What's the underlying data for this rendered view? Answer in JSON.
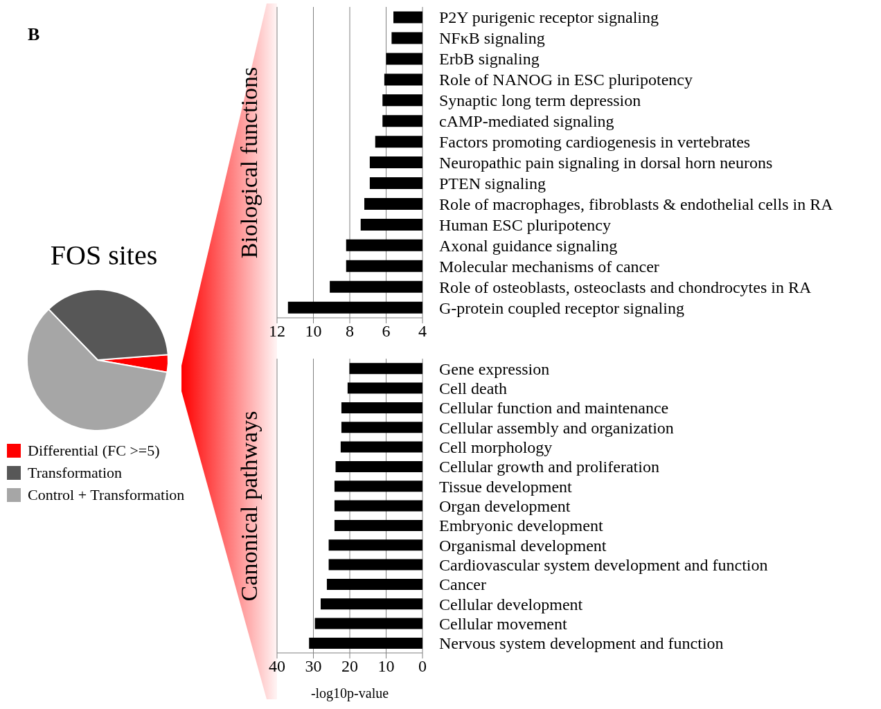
{
  "chart_data": [
    {
      "type": "pie",
      "title": "FOS sites",
      "annotations": [
        "B"
      ],
      "categories": [
        "Differential (FC >=5)",
        "Transformation",
        "Control + Transformation"
      ],
      "values": [
        4,
        36,
        60
      ],
      "colors": [
        "#ff0000",
        "#575757",
        "#a6a6a6"
      ],
      "legend": "bottom left"
    },
    {
      "type": "bar",
      "orientation": "horizontal",
      "ylabel": "Biological functions",
      "categories": [
        "P2Y purigenic receptor signaling",
        "NFκB signaling",
        "ErbB signaling",
        "Role of NANOG in ESC pluripotency",
        "Synaptic long term depression",
        "cAMP-mediated signaling",
        "Factors promoting cardiogenesis in vertebrates",
        "Neuropathic pain signaling in dorsal horn neurons",
        "PTEN signaling",
        "Role of macrophages, fibroblasts & endothelial cells in RA",
        "Human ESC pluripotency",
        "Axonal guidance signaling",
        "Molecular mechanisms of cancer",
        "Role of osteoblasts, osteoclasts and chondrocytes in RA",
        "G-protein coupled receptor signaling"
      ],
      "values": [
        5.6,
        5.7,
        6.0,
        6.1,
        6.2,
        6.2,
        6.6,
        6.9,
        6.9,
        7.2,
        7.4,
        8.2,
        8.2,
        9.1,
        11.4
      ],
      "color": "#000000",
      "xlim": [
        12,
        4
      ],
      "xticks": [
        12,
        10,
        8,
        6,
        4
      ],
      "grid": "x"
    },
    {
      "type": "bar",
      "orientation": "horizontal",
      "ylabel": "Canonical pathways",
      "xlabel": "-log10p-value",
      "categories": [
        "Gene expression",
        "Cell death",
        "Cellular function and maintenance",
        "Cellular assembly and organization",
        "Cell morphology",
        "Cellular growth and proliferation",
        "Tissue development",
        "Organ development",
        "Embryonic development",
        "Organismal development",
        "Cardiovascular system development and function",
        "Cancer",
        "Cellular development",
        "Cellular movement",
        "Nervous system development and function"
      ],
      "values": [
        20.1,
        20.6,
        22.3,
        22.3,
        22.5,
        23.9,
        24.2,
        24.2,
        24.2,
        25.8,
        25.8,
        26.3,
        28.0,
        29.6,
        31.2
      ],
      "color": "#000000",
      "xlim": [
        40,
        0
      ],
      "xticks": [
        40,
        30,
        20,
        10,
        0
      ],
      "grid": "x"
    }
  ]
}
